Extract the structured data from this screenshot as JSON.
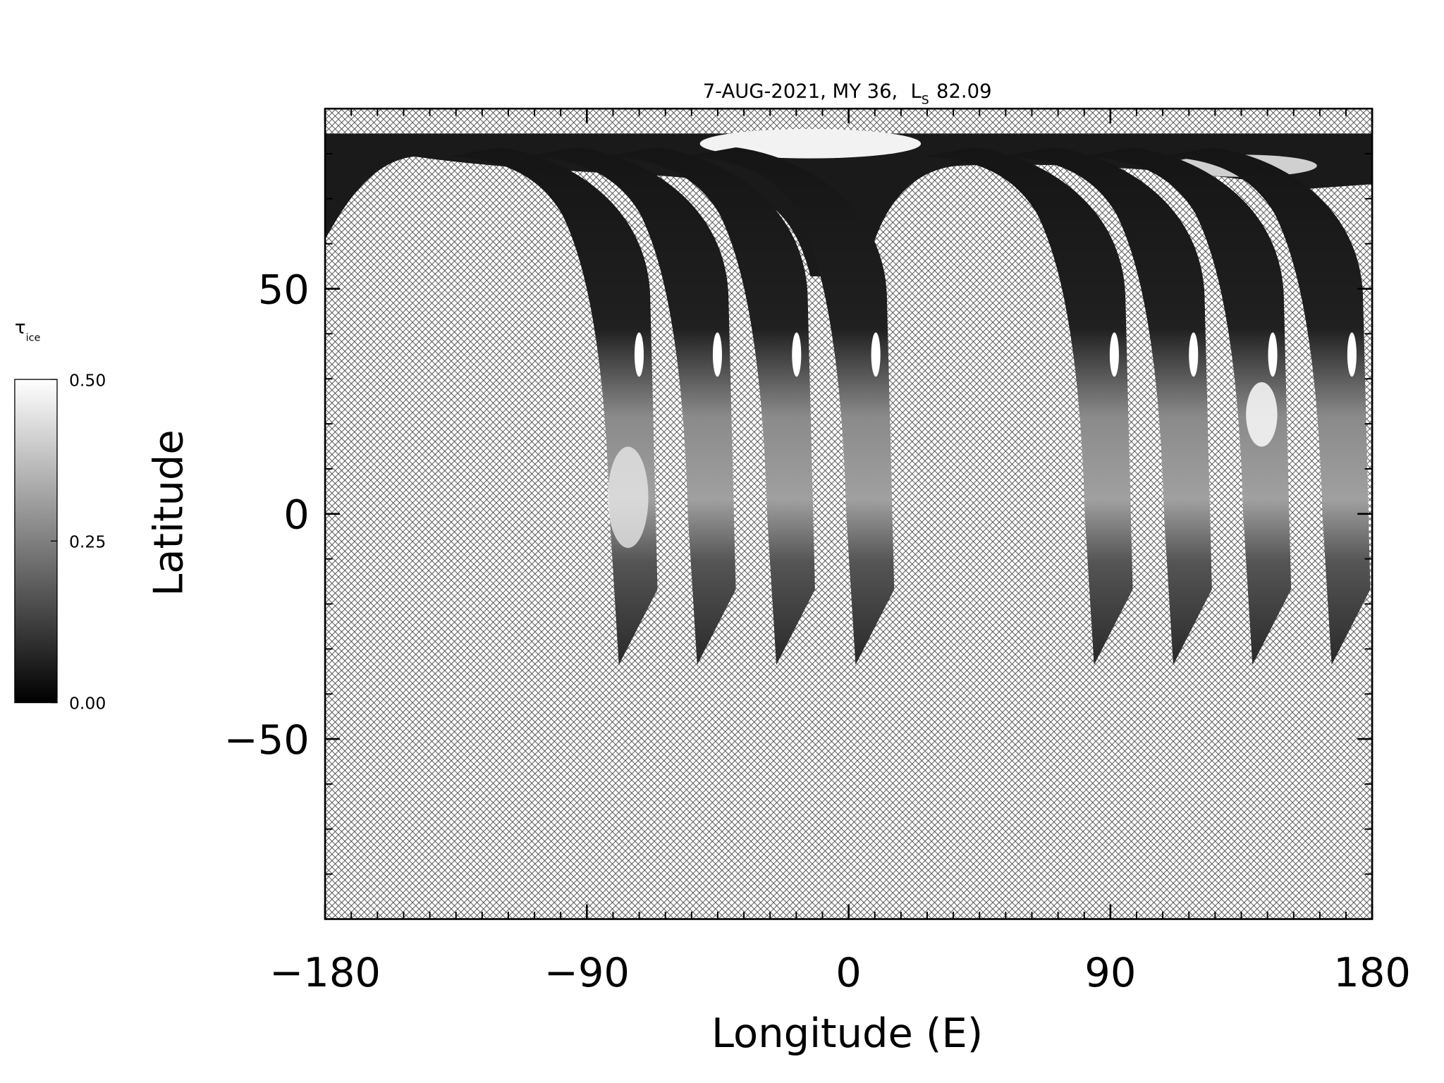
{
  "chart_data": {
    "type": "map",
    "title": "7-AUG-2021, MY 36,",
    "title_symbol": "L",
    "title_subscript": "S",
    "title_value": "82.09",
    "xlabel": "Longitude (E)",
    "ylabel": "Latitude",
    "xlim": [
      -180,
      180
    ],
    "ylim": [
      -90,
      90
    ],
    "xticks": [
      {
        "value": -180,
        "label": "−180"
      },
      {
        "value": -90,
        "label": "−90"
      },
      0,
      90,
      180
    ],
    "yticks": [
      {
        "value": -50,
        "label": "−50"
      },
      0,
      50
    ],
    "xminorticks": [
      -171,
      -162,
      -153,
      -144,
      -135,
      -126,
      -117,
      -108,
      -99,
      -81,
      -72,
      -63,
      -54,
      -45,
      -36,
      -27,
      -18,
      -9,
      9,
      18,
      27,
      36,
      45,
      54,
      63,
      72,
      81,
      99,
      108,
      117,
      126,
      135,
      144,
      153,
      162,
      171
    ],
    "yminorticks": [
      -80,
      -70,
      -60,
      -40,
      -30,
      -20,
      -10,
      10,
      20,
      30,
      40,
      60,
      70,
      80
    ],
    "colorbar": {
      "label": "τ",
      "label_subscript": "ice",
      "lim": [
        0,
        0.5
      ],
      "ticks": [
        {
          "value": 0,
          "label": "0.00"
        },
        {
          "value": 0.25,
          "label": "0.25"
        },
        {
          "value": 0.5,
          "label": "0.50"
        }
      ],
      "colors": [
        "#000000",
        "#ffffff"
      ]
    }
  }
}
